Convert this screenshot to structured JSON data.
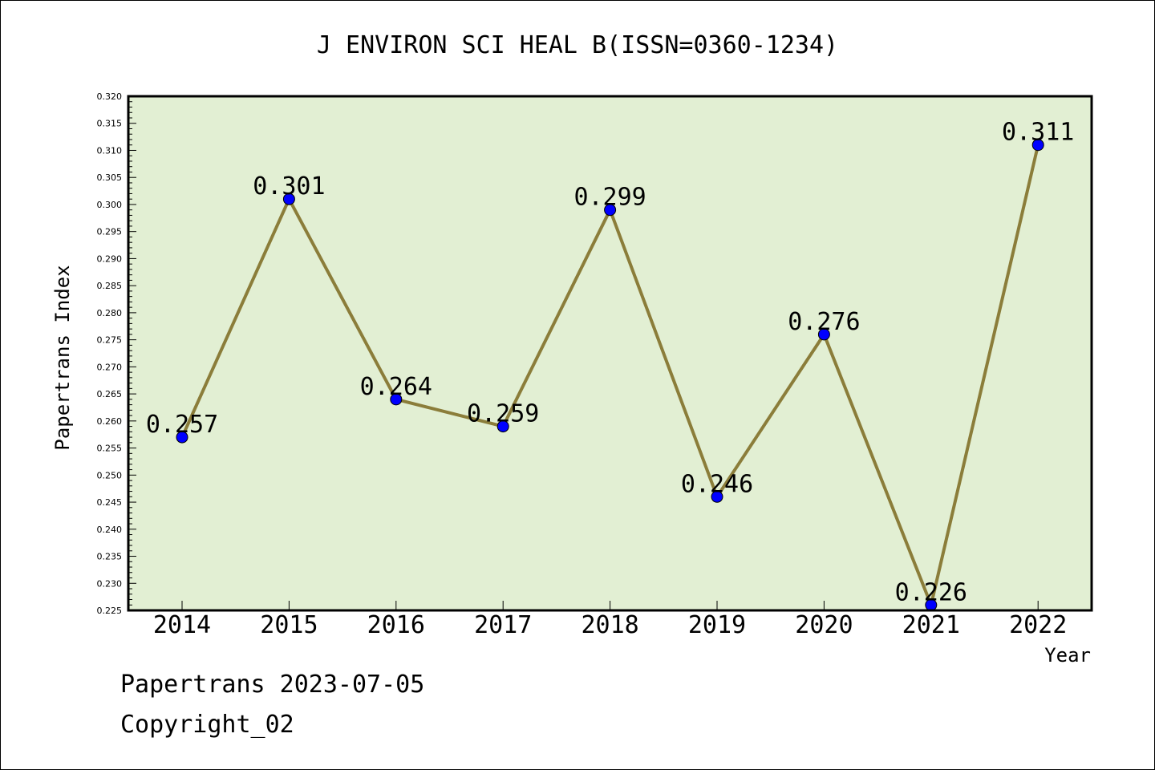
{
  "chart_data": {
    "type": "line",
    "title": "J ENVIRON SCI HEAL B(ISSN=0360-1234)",
    "xlabel": "Year",
    "ylabel": "Papertrans Index",
    "categories": [
      "2014",
      "2015",
      "2016",
      "2017",
      "2018",
      "2019",
      "2020",
      "2021",
      "2022"
    ],
    "series": [
      {
        "values": [
          0.257,
          0.301,
          0.264,
          0.259,
          0.299,
          0.246,
          0.276,
          0.226,
          0.311
        ],
        "data_labels": [
          "0.257",
          "0.301",
          "0.264",
          "0.259",
          "0.299",
          "0.246",
          "0.276",
          "0.226",
          "0.311"
        ]
      }
    ],
    "ylim": [
      0.225,
      0.32
    ],
    "yticks": [
      "0.225",
      "0.230",
      "0.235",
      "0.240",
      "0.245",
      "0.250",
      "0.255",
      "0.260",
      "0.265",
      "0.270",
      "0.275",
      "0.280",
      "0.285",
      "0.290",
      "0.295",
      "0.300",
      "0.305",
      "0.310",
      "0.315",
      "0.320"
    ],
    "colors": {
      "plot_background": "#e2efd3",
      "line": "#8b7d3a",
      "marker": "#0000ff"
    },
    "grid": false
  },
  "footer": {
    "source": "Papertrans 2023-07-05",
    "copyright": "Copyright_02"
  }
}
